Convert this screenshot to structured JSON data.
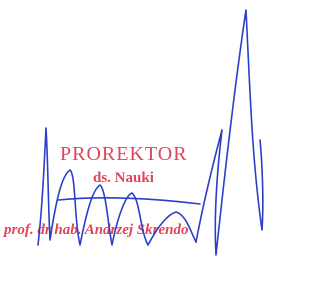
{
  "stamp": {
    "title": "PROREKTOR",
    "subtitle": "ds. Nauki",
    "name": "prof. dr hab. Andrzej Skrendo"
  }
}
